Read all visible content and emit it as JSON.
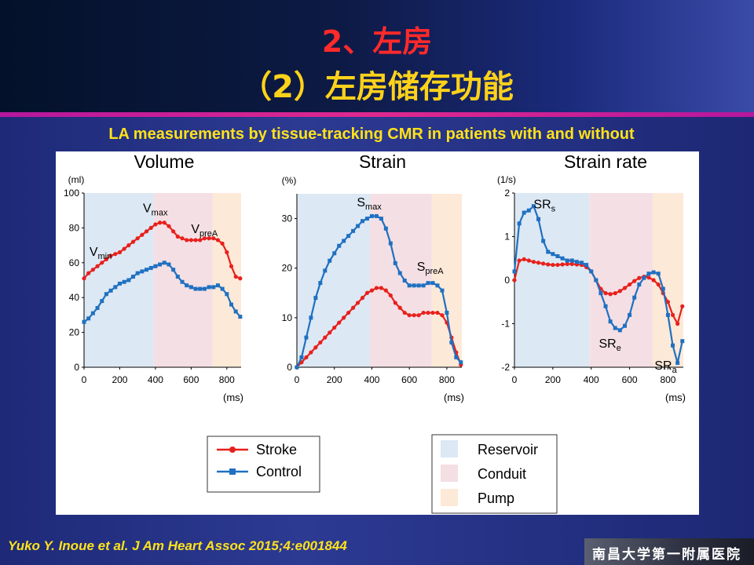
{
  "slide": {
    "title_line1": "2、左房",
    "title_line2": "（2）左房储存功能",
    "subtitle": "LA measurements by tissue‐tracking CMR in patients with and without",
    "citation": "Yuko Y. Inoue et al. J Am Heart Assoc 2015;4:e001844",
    "logo_text": "南昌大学第一附属医院"
  },
  "colors": {
    "stroke": "#e8201c",
    "control": "#1f70c1",
    "reservoir": "#dce8f4",
    "conduit": "#f4dfe4",
    "pump": "#fde9d8"
  },
  "legend_series": [
    "Stroke",
    "Control"
  ],
  "legend_phases": [
    "Reservoir",
    "Conduit",
    "Pump"
  ],
  "chart_data": [
    {
      "type": "line",
      "title": "Volume",
      "ylabel": "(ml)",
      "xlabel": "(ms)",
      "xlim": [
        0,
        880
      ],
      "ylim": [
        0,
        100
      ],
      "xticks": [
        0,
        200,
        400,
        600,
        800
      ],
      "yticks": [
        0,
        20,
        40,
        60,
        80,
        100
      ],
      "phases": [
        {
          "name": "Reservoir",
          "start": 0,
          "end": 390
        },
        {
          "name": "Conduit",
          "start": 390,
          "end": 720
        },
        {
          "name": "Pump",
          "start": 720,
          "end": 880
        }
      ],
      "annotations": [
        {
          "text": "V",
          "sub": "min",
          "x": 30,
          "y": 64
        },
        {
          "text": "V",
          "sub": "max",
          "x": 330,
          "y": 89
        },
        {
          "text": "V",
          "sub": "preA",
          "x": 600,
          "y": 77
        }
      ],
      "series": [
        {
          "name": "Stroke",
          "x": [
            0,
            25,
            50,
            75,
            100,
            125,
            150,
            175,
            200,
            225,
            250,
            275,
            300,
            325,
            350,
            375,
            400,
            425,
            450,
            475,
            500,
            525,
            550,
            575,
            600,
            625,
            650,
            675,
            700,
            725,
            750,
            775,
            800,
            825,
            850,
            875
          ],
          "values": [
            51,
            54,
            56,
            58,
            60,
            62,
            64,
            65,
            66,
            68,
            70,
            72,
            74,
            76,
            78,
            80,
            82,
            83,
            83,
            81,
            78,
            75,
            74,
            73,
            73,
            73,
            73,
            74,
            74,
            74,
            73,
            71,
            66,
            58,
            52,
            51
          ]
        },
        {
          "name": "Control",
          "x": [
            0,
            25,
            50,
            75,
            100,
            125,
            150,
            175,
            200,
            225,
            250,
            275,
            300,
            325,
            350,
            375,
            400,
            425,
            450,
            475,
            500,
            525,
            550,
            575,
            600,
            625,
            650,
            675,
            700,
            725,
            750,
            775,
            800,
            825,
            850,
            875
          ],
          "values": [
            26,
            28,
            31,
            34,
            38,
            42,
            44,
            46,
            48,
            49,
            50,
            52,
            54,
            55,
            56,
            57,
            58,
            59,
            60,
            59,
            56,
            52,
            49,
            47,
            46,
            45,
            45,
            45,
            46,
            46,
            47,
            45,
            42,
            36,
            32,
            29
          ]
        }
      ]
    },
    {
      "type": "line",
      "title": "Strain",
      "ylabel": "(%)",
      "xlabel": "(ms)",
      "xlim": [
        0,
        880
      ],
      "ylim": [
        0,
        35
      ],
      "xticks": [
        0,
        200,
        400,
        600,
        800
      ],
      "yticks": [
        0,
        10,
        20,
        30
      ],
      "phases": [
        {
          "name": "Reservoir",
          "start": 0,
          "end": 390
        },
        {
          "name": "Conduit",
          "start": 390,
          "end": 720
        },
        {
          "name": "Pump",
          "start": 720,
          "end": 880
        }
      ],
      "annotations": [
        {
          "text": "S",
          "sub": "max",
          "x": 320,
          "y": 32.5
        },
        {
          "text": "S",
          "sub": "preA",
          "x": 640,
          "y": 19.5
        }
      ],
      "series": [
        {
          "name": "Stroke",
          "x": [
            0,
            25,
            50,
            75,
            100,
            125,
            150,
            175,
            200,
            225,
            250,
            275,
            300,
            325,
            350,
            375,
            400,
            425,
            450,
            475,
            500,
            525,
            550,
            575,
            600,
            625,
            650,
            675,
            700,
            725,
            750,
            775,
            800,
            825,
            850,
            875
          ],
          "values": [
            0,
            1,
            2,
            3,
            4,
            5,
            6,
            7,
            8,
            9,
            10,
            11,
            12,
            13,
            14,
            15,
            15.5,
            16,
            16,
            15.5,
            14.5,
            13,
            12,
            11,
            10.5,
            10.5,
            10.5,
            11,
            11,
            11,
            11,
            10.5,
            9,
            6,
            3,
            0.5
          ]
        },
        {
          "name": "Control",
          "x": [
            0,
            25,
            50,
            75,
            100,
            125,
            150,
            175,
            200,
            225,
            250,
            275,
            300,
            325,
            350,
            375,
            400,
            425,
            450,
            475,
            500,
            525,
            550,
            575,
            600,
            625,
            650,
            675,
            700,
            725,
            750,
            775,
            800,
            825,
            850,
            875
          ],
          "values": [
            0,
            2,
            6,
            10,
            14,
            17,
            19.5,
            21.5,
            23,
            24.5,
            25.5,
            26.5,
            27.5,
            28.5,
            29.5,
            30,
            30.5,
            30.5,
            30,
            28,
            25,
            21,
            19,
            17.5,
            16.5,
            16.5,
            16.5,
            16.5,
            17,
            17,
            16.5,
            15.5,
            11,
            5,
            2,
            1
          ]
        }
      ]
    },
    {
      "type": "line",
      "title": "Strain rate",
      "ylabel": "(1/s)",
      "xlabel": "(ms)",
      "xlim": [
        0,
        880
      ],
      "ylim": [
        -2,
        2
      ],
      "xticks": [
        0,
        200,
        400,
        600,
        800
      ],
      "yticks": [
        -2,
        -1,
        0,
        1,
        2
      ],
      "phases": [
        {
          "name": "Reservoir",
          "start": 0,
          "end": 390
        },
        {
          "name": "Conduit",
          "start": 390,
          "end": 720
        },
        {
          "name": "Pump",
          "start": 720,
          "end": 880
        }
      ],
      "annotations": [
        {
          "text": "SR",
          "sub": "s",
          "x": 100,
          "y": 1.65
        },
        {
          "text": "SR",
          "sub": "e",
          "x": 440,
          "y": -1.55
        },
        {
          "text": "SR",
          "sub": "a",
          "x": 730,
          "y": -2.05
        }
      ],
      "series": [
        {
          "name": "Stroke",
          "x": [
            0,
            25,
            50,
            75,
            100,
            125,
            150,
            175,
            200,
            225,
            250,
            275,
            300,
            325,
            350,
            375,
            400,
            425,
            450,
            475,
            500,
            525,
            550,
            575,
            600,
            625,
            650,
            675,
            700,
            725,
            750,
            775,
            800,
            825,
            850,
            875
          ],
          "values": [
            0,
            0.45,
            0.48,
            0.45,
            0.42,
            0.4,
            0.38,
            0.36,
            0.35,
            0.35,
            0.36,
            0.37,
            0.37,
            0.36,
            0.35,
            0.3,
            0.2,
            0,
            -0.2,
            -0.3,
            -0.32,
            -0.3,
            -0.25,
            -0.18,
            -0.1,
            -0.02,
            0.05,
            0.08,
            0.06,
            0,
            -0.1,
            -0.3,
            -0.5,
            -0.8,
            -1.0,
            -0.6
          ]
        },
        {
          "name": "Control",
          "x": [
            0,
            25,
            50,
            75,
            100,
            125,
            150,
            175,
            200,
            225,
            250,
            275,
            300,
            325,
            350,
            375,
            400,
            425,
            450,
            475,
            500,
            525,
            550,
            575,
            600,
            625,
            650,
            675,
            700,
            725,
            750,
            775,
            800,
            825,
            850,
            875
          ],
          "values": [
            0.2,
            1.3,
            1.55,
            1.6,
            1.7,
            1.4,
            0.9,
            0.65,
            0.6,
            0.55,
            0.5,
            0.45,
            0.45,
            0.42,
            0.4,
            0.35,
            0.2,
            0,
            -0.3,
            -0.6,
            -0.95,
            -1.1,
            -1.15,
            -1.05,
            -0.8,
            -0.4,
            -0.1,
            0.05,
            0.15,
            0.18,
            0.15,
            -0.2,
            -0.8,
            -1.5,
            -1.9,
            -1.4
          ]
        }
      ]
    }
  ]
}
